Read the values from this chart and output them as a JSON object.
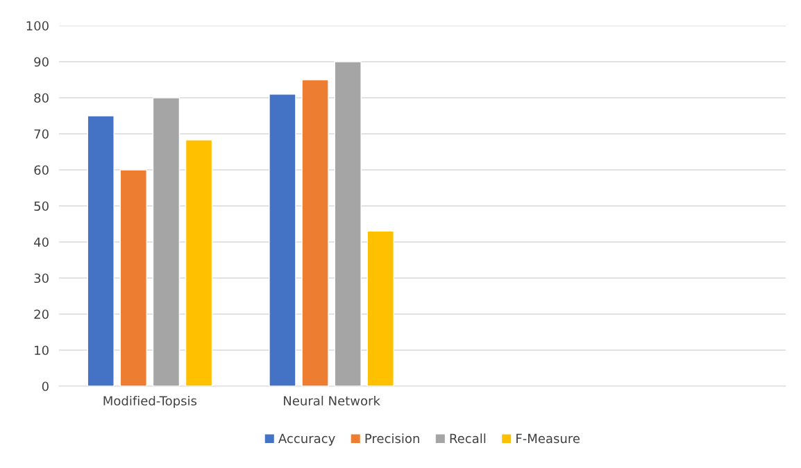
{
  "chart_data": {
    "type": "bar",
    "categories": [
      "Modified-Topsis",
      "Neural Network",
      null,
      null
    ],
    "series": [
      {
        "name": "Accuracy",
        "color": "#4472c4",
        "values": [
          75,
          81,
          null,
          null
        ]
      },
      {
        "name": "Precision",
        "color": "#ed7d31",
        "values": [
          60,
          85,
          null,
          null
        ]
      },
      {
        "name": "Recall",
        "color": "#a5a5a5",
        "values": [
          80,
          90,
          null,
          null
        ]
      },
      {
        "name": "F-Measure",
        "color": "#ffc000",
        "values": [
          68.3,
          43,
          null,
          null
        ]
      }
    ],
    "ylim": [
      0,
      100
    ],
    "yticks": [
      0,
      10,
      20,
      30,
      40,
      50,
      60,
      70,
      80,
      90,
      100
    ],
    "grid": "y",
    "legend": "bottom"
  }
}
